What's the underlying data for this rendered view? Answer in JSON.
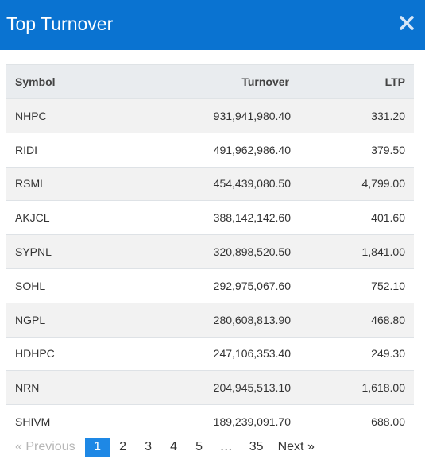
{
  "header": {
    "title": "Top Turnover",
    "close_icon": "close-icon"
  },
  "table": {
    "columns": {
      "symbol": "Symbol",
      "turnover": "Turnover",
      "ltp": "LTP"
    },
    "rows": [
      {
        "symbol": "NHPC",
        "turnover": "931,941,980.40",
        "ltp": "331.20"
      },
      {
        "symbol": "RIDI",
        "turnover": "491,962,986.40",
        "ltp": "379.50"
      },
      {
        "symbol": "RSML",
        "turnover": "454,439,080.50",
        "ltp": "4,799.00"
      },
      {
        "symbol": "AKJCL",
        "turnover": "388,142,142.60",
        "ltp": "401.60"
      },
      {
        "symbol": "SYPNL",
        "turnover": "320,898,520.50",
        "ltp": "1,841.00"
      },
      {
        "symbol": "SOHL",
        "turnover": "292,975,067.60",
        "ltp": "752.10"
      },
      {
        "symbol": "NGPL",
        "turnover": "280,608,813.90",
        "ltp": "468.80"
      },
      {
        "symbol": "HDHPC",
        "turnover": "247,106,353.40",
        "ltp": "249.30"
      },
      {
        "symbol": "NRN",
        "turnover": "204,945,513.10",
        "ltp": "1,618.00"
      },
      {
        "symbol": "SHIVM",
        "turnover": "189,239,091.70",
        "ltp": "688.00"
      }
    ]
  },
  "pagination": {
    "previous": "« Previous",
    "pages": [
      "1",
      "2",
      "3",
      "4",
      "5"
    ],
    "active_page": "1",
    "ellipsis": "…",
    "last_page": "35",
    "next": "Next »"
  },
  "colors": {
    "header_bg": "#0a73d1",
    "active_page_bg": "#1e88e5"
  }
}
